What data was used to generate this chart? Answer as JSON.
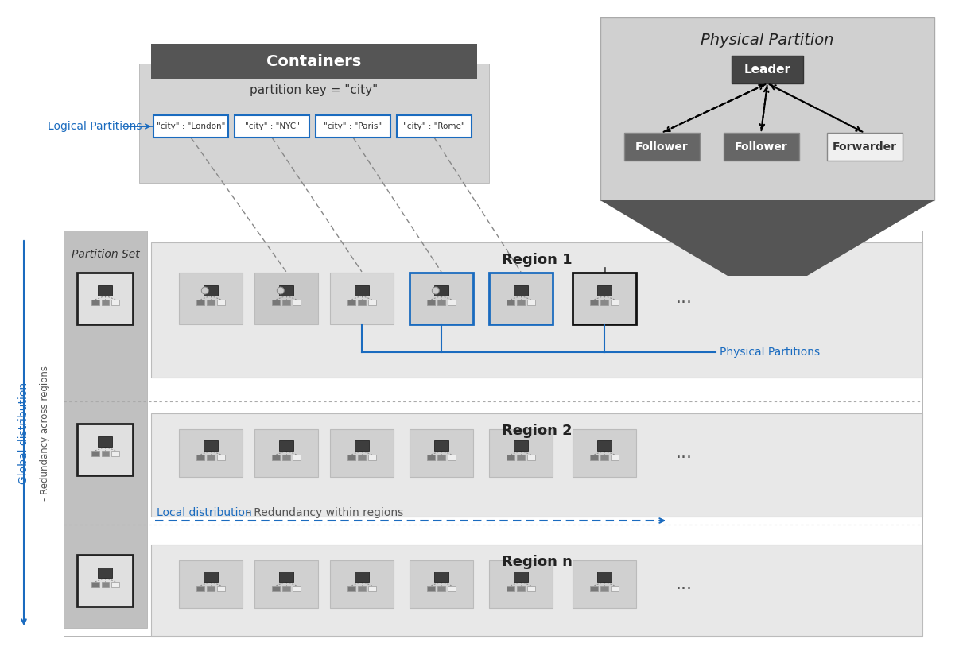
{
  "bg_color": "#ffffff",
  "light_gray": "#d8d8d8",
  "mid_gray": "#a0a0a0",
  "dark_gray": "#555555",
  "darker_gray": "#404040",
  "darkest": "#222222",
  "blue": "#1a6bbf",
  "light_blue": "#6baed6",
  "partition_set_bg": "#c8c8c8",
  "region_bg": "#e8e8e8",
  "container_header": "#555555",
  "container_bg": "#d0d0d0",
  "phys_partition_bg": "#d0d0d0",
  "funnel_dark": "#555555",
  "logical_labels": [
    "\"city\" : \"London\"",
    "\"city\" : \"NYC\"",
    "\"city\" : \"Paris\"",
    "\"city\" : \"Rome\""
  ],
  "region_labels": [
    "Region 1",
    "Region 2",
    "Region n"
  ],
  "title_containers": "Containers",
  "title_partition_key": "partition key = \"city\"",
  "title_physical_partition": "Physical Partition",
  "label_logical": "Logical Partitions",
  "label_physical": "Physical Partitions",
  "label_partition_set": "Partition Set",
  "label_global": "Global distribution",
  "label_redundancy_across": "- Redundancy across regions",
  "label_local": "Local distribution",
  "label_redundancy_within": "- Redundancy within regions",
  "leader_label": "Leader",
  "follower1_label": "Follower",
  "follower2_label": "Follower",
  "forwarder_label": "Forwarder"
}
